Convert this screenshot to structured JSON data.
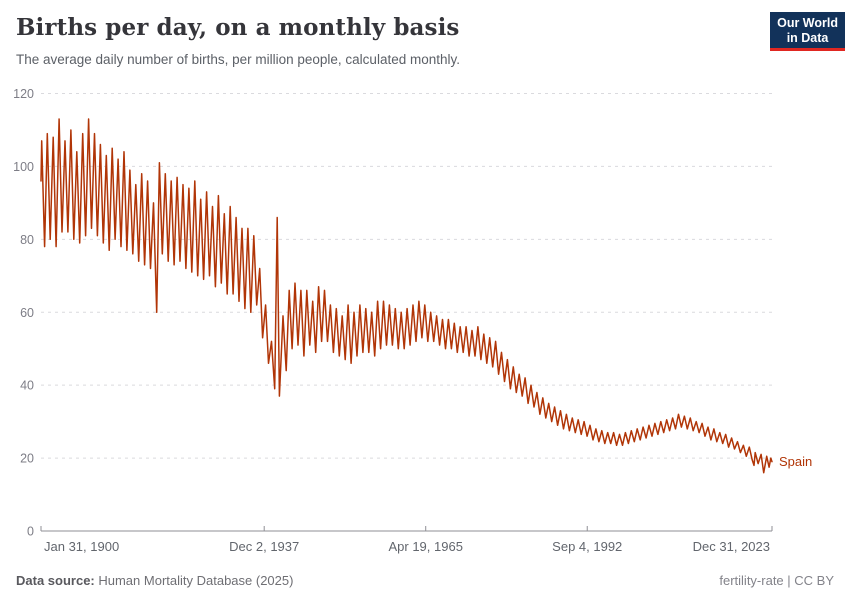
{
  "header": {
    "title": "Births per day, on a monthly basis",
    "subtitle": "The average daily number of births, per million people, calculated monthly."
  },
  "logo": {
    "line1": "Our World",
    "line2": "in Data"
  },
  "footer": {
    "source_label": "Data source:",
    "source_text": " Human Mortality Database (2025)",
    "license_text": "fertility-rate | CC BY"
  },
  "colors": {
    "line": "#b13507",
    "grid": "#dadade",
    "axis": "#8f8f95",
    "y_tick_label": "#7d7d86",
    "x_tick_label": "#62666d",
    "series_label": "#b13507",
    "logo_bg": "#12325a",
    "logo_accent": "#e02721"
  },
  "chart_data": {
    "type": "line",
    "title": "Births per day, on a monthly basis",
    "subtitle": "The average daily number of births, per million people, calculated monthly.",
    "entity": "Spain",
    "unit": "births per day per million people",
    "grid": "dashed horizontal gridlines",
    "legend": "end-of-line entity label",
    "x_range": [
      1900.085,
      2024.0
    ],
    "y_range": [
      0,
      120
    ],
    "y_ticks": [
      0,
      20,
      40,
      60,
      80,
      100,
      120
    ],
    "x_ticks": [
      {
        "label": "Jan 31, 1900",
        "x": 1900.085,
        "align": "start"
      },
      {
        "label": "Dec 2, 1937",
        "x": 1937.92,
        "align": "middle"
      },
      {
        "label": "Apr 19, 1965",
        "x": 1965.3,
        "align": "middle"
      },
      {
        "label": "Sep 4, 1992",
        "x": 1992.68,
        "align": "middle"
      },
      {
        "label": "Dec 31, 2023",
        "x": 2024.0,
        "align": "end"
      }
    ],
    "series": [
      {
        "name": "Spain",
        "color": "#b13507",
        "points": [
          [
            1900.08,
            96
          ],
          [
            1900.2,
            107
          ],
          [
            1900.7,
            78
          ],
          [
            1901.15,
            109
          ],
          [
            1901.65,
            80
          ],
          [
            1902.15,
            108
          ],
          [
            1902.65,
            78
          ],
          [
            1903.15,
            113
          ],
          [
            1903.65,
            82
          ],
          [
            1904.15,
            107
          ],
          [
            1904.65,
            82
          ],
          [
            1905.15,
            110
          ],
          [
            1905.65,
            80
          ],
          [
            1906.15,
            104
          ],
          [
            1906.65,
            79
          ],
          [
            1907.15,
            109
          ],
          [
            1907.65,
            81
          ],
          [
            1908.15,
            113
          ],
          [
            1908.65,
            83
          ],
          [
            1909.15,
            109
          ],
          [
            1909.65,
            81
          ],
          [
            1910.15,
            106
          ],
          [
            1910.65,
            79
          ],
          [
            1911.15,
            103
          ],
          [
            1911.65,
            77
          ],
          [
            1912.15,
            105
          ],
          [
            1912.65,
            80
          ],
          [
            1913.15,
            102
          ],
          [
            1913.65,
            78
          ],
          [
            1914.15,
            104
          ],
          [
            1914.65,
            77
          ],
          [
            1915.15,
            99
          ],
          [
            1915.65,
            76
          ],
          [
            1916.15,
            95
          ],
          [
            1916.65,
            74
          ],
          [
            1917.15,
            98
          ],
          [
            1917.65,
            73
          ],
          [
            1918.15,
            96
          ],
          [
            1918.65,
            72
          ],
          [
            1919.15,
            90
          ],
          [
            1919.7,
            60
          ],
          [
            1920.15,
            101
          ],
          [
            1920.65,
            76
          ],
          [
            1921.15,
            98
          ],
          [
            1921.65,
            74
          ],
          [
            1922.15,
            96
          ],
          [
            1922.65,
            73
          ],
          [
            1923.15,
            97
          ],
          [
            1923.65,
            74
          ],
          [
            1924.15,
            95
          ],
          [
            1924.65,
            72
          ],
          [
            1925.15,
            94
          ],
          [
            1925.65,
            71
          ],
          [
            1926.15,
            96
          ],
          [
            1926.65,
            70
          ],
          [
            1927.15,
            91
          ],
          [
            1927.65,
            69
          ],
          [
            1928.15,
            93
          ],
          [
            1928.65,
            70
          ],
          [
            1929.15,
            89
          ],
          [
            1929.65,
            67
          ],
          [
            1930.15,
            92
          ],
          [
            1930.65,
            68
          ],
          [
            1931.15,
            87
          ],
          [
            1931.65,
            65
          ],
          [
            1932.15,
            89
          ],
          [
            1932.65,
            65
          ],
          [
            1933.15,
            86
          ],
          [
            1933.65,
            63
          ],
          [
            1934.15,
            83
          ],
          [
            1934.65,
            61
          ],
          [
            1935.15,
            83
          ],
          [
            1935.65,
            60
          ],
          [
            1936.15,
            81
          ],
          [
            1936.65,
            62
          ],
          [
            1937.15,
            72
          ],
          [
            1937.65,
            53
          ],
          [
            1938.15,
            62
          ],
          [
            1938.65,
            46
          ],
          [
            1939.15,
            52
          ],
          [
            1939.7,
            39
          ],
          [
            1940.12,
            86
          ],
          [
            1940.5,
            37
          ],
          [
            1941.1,
            59
          ],
          [
            1941.65,
            44
          ],
          [
            1942.15,
            66
          ],
          [
            1942.65,
            50
          ],
          [
            1943.15,
            68
          ],
          [
            1943.65,
            51
          ],
          [
            1944.15,
            66
          ],
          [
            1944.65,
            48
          ],
          [
            1945.15,
            66
          ],
          [
            1945.65,
            51
          ],
          [
            1946.15,
            63
          ],
          [
            1946.65,
            49
          ],
          [
            1947.15,
            67
          ],
          [
            1947.65,
            52
          ],
          [
            1948.15,
            66
          ],
          [
            1948.65,
            52
          ],
          [
            1949.15,
            62
          ],
          [
            1949.65,
            49
          ],
          [
            1950.15,
            61
          ],
          [
            1950.65,
            48
          ],
          [
            1951.15,
            59
          ],
          [
            1951.65,
            47
          ],
          [
            1952.15,
            62
          ],
          [
            1952.65,
            46
          ],
          [
            1953.15,
            60
          ],
          [
            1953.65,
            48
          ],
          [
            1954.15,
            62
          ],
          [
            1954.65,
            49
          ],
          [
            1955.15,
            61
          ],
          [
            1955.65,
            49
          ],
          [
            1956.15,
            60
          ],
          [
            1956.65,
            48
          ],
          [
            1957.15,
            63
          ],
          [
            1957.65,
            50
          ],
          [
            1958.15,
            63
          ],
          [
            1958.65,
            51
          ],
          [
            1959.15,
            62
          ],
          [
            1959.65,
            51
          ],
          [
            1960.15,
            61
          ],
          [
            1960.65,
            50
          ],
          [
            1961.15,
            60
          ],
          [
            1961.65,
            50
          ],
          [
            1962.15,
            61
          ],
          [
            1962.65,
            51
          ],
          [
            1963.15,
            62
          ],
          [
            1963.65,
            52
          ],
          [
            1964.15,
            63
          ],
          [
            1964.65,
            53
          ],
          [
            1965.15,
            62
          ],
          [
            1965.65,
            52
          ],
          [
            1966.15,
            60
          ],
          [
            1966.65,
            52
          ],
          [
            1967.15,
            59
          ],
          [
            1967.65,
            51
          ],
          [
            1968.15,
            58
          ],
          [
            1968.65,
            50
          ],
          [
            1969.15,
            58
          ],
          [
            1969.65,
            50
          ],
          [
            1970.15,
            57
          ],
          [
            1970.65,
            49
          ],
          [
            1971.15,
            56
          ],
          [
            1971.65,
            49
          ],
          [
            1972.15,
            56
          ],
          [
            1972.65,
            48
          ],
          [
            1973.15,
            55
          ],
          [
            1973.65,
            48
          ],
          [
            1974.15,
            56
          ],
          [
            1974.65,
            47
          ],
          [
            1975.15,
            54
          ],
          [
            1975.65,
            46
          ],
          [
            1976.15,
            53
          ],
          [
            1976.65,
            45
          ],
          [
            1977.15,
            52
          ],
          [
            1977.65,
            43
          ],
          [
            1978.15,
            49
          ],
          [
            1978.65,
            41
          ],
          [
            1979.15,
            47
          ],
          [
            1979.65,
            39
          ],
          [
            1980.15,
            45
          ],
          [
            1980.65,
            38
          ],
          [
            1981.15,
            43
          ],
          [
            1981.65,
            37
          ],
          [
            1982.15,
            42
          ],
          [
            1982.65,
            35
          ],
          [
            1983.15,
            40
          ],
          [
            1983.65,
            34
          ],
          [
            1984.15,
            38
          ],
          [
            1984.65,
            32
          ],
          [
            1985.15,
            36.5
          ],
          [
            1985.65,
            31
          ],
          [
            1986.15,
            35
          ],
          [
            1986.65,
            30
          ],
          [
            1987.15,
            34
          ],
          [
            1987.65,
            29
          ],
          [
            1988.15,
            33
          ],
          [
            1988.65,
            28
          ],
          [
            1989.15,
            32
          ],
          [
            1989.65,
            27.5
          ],
          [
            1990.15,
            31
          ],
          [
            1990.65,
            27
          ],
          [
            1991.15,
            30.5
          ],
          [
            1991.65,
            26.5
          ],
          [
            1992.15,
            30
          ],
          [
            1992.65,
            26
          ],
          [
            1993.15,
            29
          ],
          [
            1993.65,
            25
          ],
          [
            1994.15,
            28
          ],
          [
            1994.65,
            24.5
          ],
          [
            1995.15,
            27.5
          ],
          [
            1995.65,
            24
          ],
          [
            1996.15,
            27
          ],
          [
            1996.65,
            24
          ],
          [
            1997.15,
            27
          ],
          [
            1997.65,
            23.5
          ],
          [
            1998.15,
            26.5
          ],
          [
            1998.65,
            23.5
          ],
          [
            1999.15,
            27
          ],
          [
            1999.65,
            24
          ],
          [
            2000.15,
            27.5
          ],
          [
            2000.65,
            24.5
          ],
          [
            2001.15,
            28
          ],
          [
            2001.65,
            25
          ],
          [
            2002.15,
            28.5
          ],
          [
            2002.65,
            25.5
          ],
          [
            2003.15,
            29
          ],
          [
            2003.65,
            26
          ],
          [
            2004.15,
            29.5
          ],
          [
            2004.65,
            26.5
          ],
          [
            2005.15,
            30
          ],
          [
            2005.65,
            27
          ],
          [
            2006.15,
            30.5
          ],
          [
            2006.65,
            27.5
          ],
          [
            2007.15,
            31
          ],
          [
            2007.65,
            28
          ],
          [
            2008.15,
            32
          ],
          [
            2008.65,
            28.5
          ],
          [
            2009.15,
            31.5
          ],
          [
            2009.65,
            28
          ],
          [
            2010.15,
            31
          ],
          [
            2010.65,
            27.5
          ],
          [
            2011.15,
            30
          ],
          [
            2011.65,
            27
          ],
          [
            2012.15,
            29.5
          ],
          [
            2012.65,
            26
          ],
          [
            2013.15,
            28.5
          ],
          [
            2013.65,
            25
          ],
          [
            2014.15,
            28
          ],
          [
            2014.65,
            24.5
          ],
          [
            2015.15,
            27
          ],
          [
            2015.65,
            24
          ],
          [
            2016.15,
            26.5
          ],
          [
            2016.65,
            23
          ],
          [
            2017.15,
            25.5
          ],
          [
            2017.65,
            22.5
          ],
          [
            2018.15,
            24.5
          ],
          [
            2018.65,
            21.5
          ],
          [
            2019.15,
            23.5
          ],
          [
            2019.65,
            20.5
          ],
          [
            2020.15,
            23
          ],
          [
            2020.65,
            19.5
          ],
          [
            2020.95,
            18
          ],
          [
            2021.15,
            21.5
          ],
          [
            2021.65,
            18.5
          ],
          [
            2022.15,
            21
          ],
          [
            2022.6,
            16
          ],
          [
            2023.1,
            20.5
          ],
          [
            2023.5,
            17.5
          ],
          [
            2023.8,
            20
          ],
          [
            2024.0,
            19
          ]
        ]
      }
    ]
  }
}
